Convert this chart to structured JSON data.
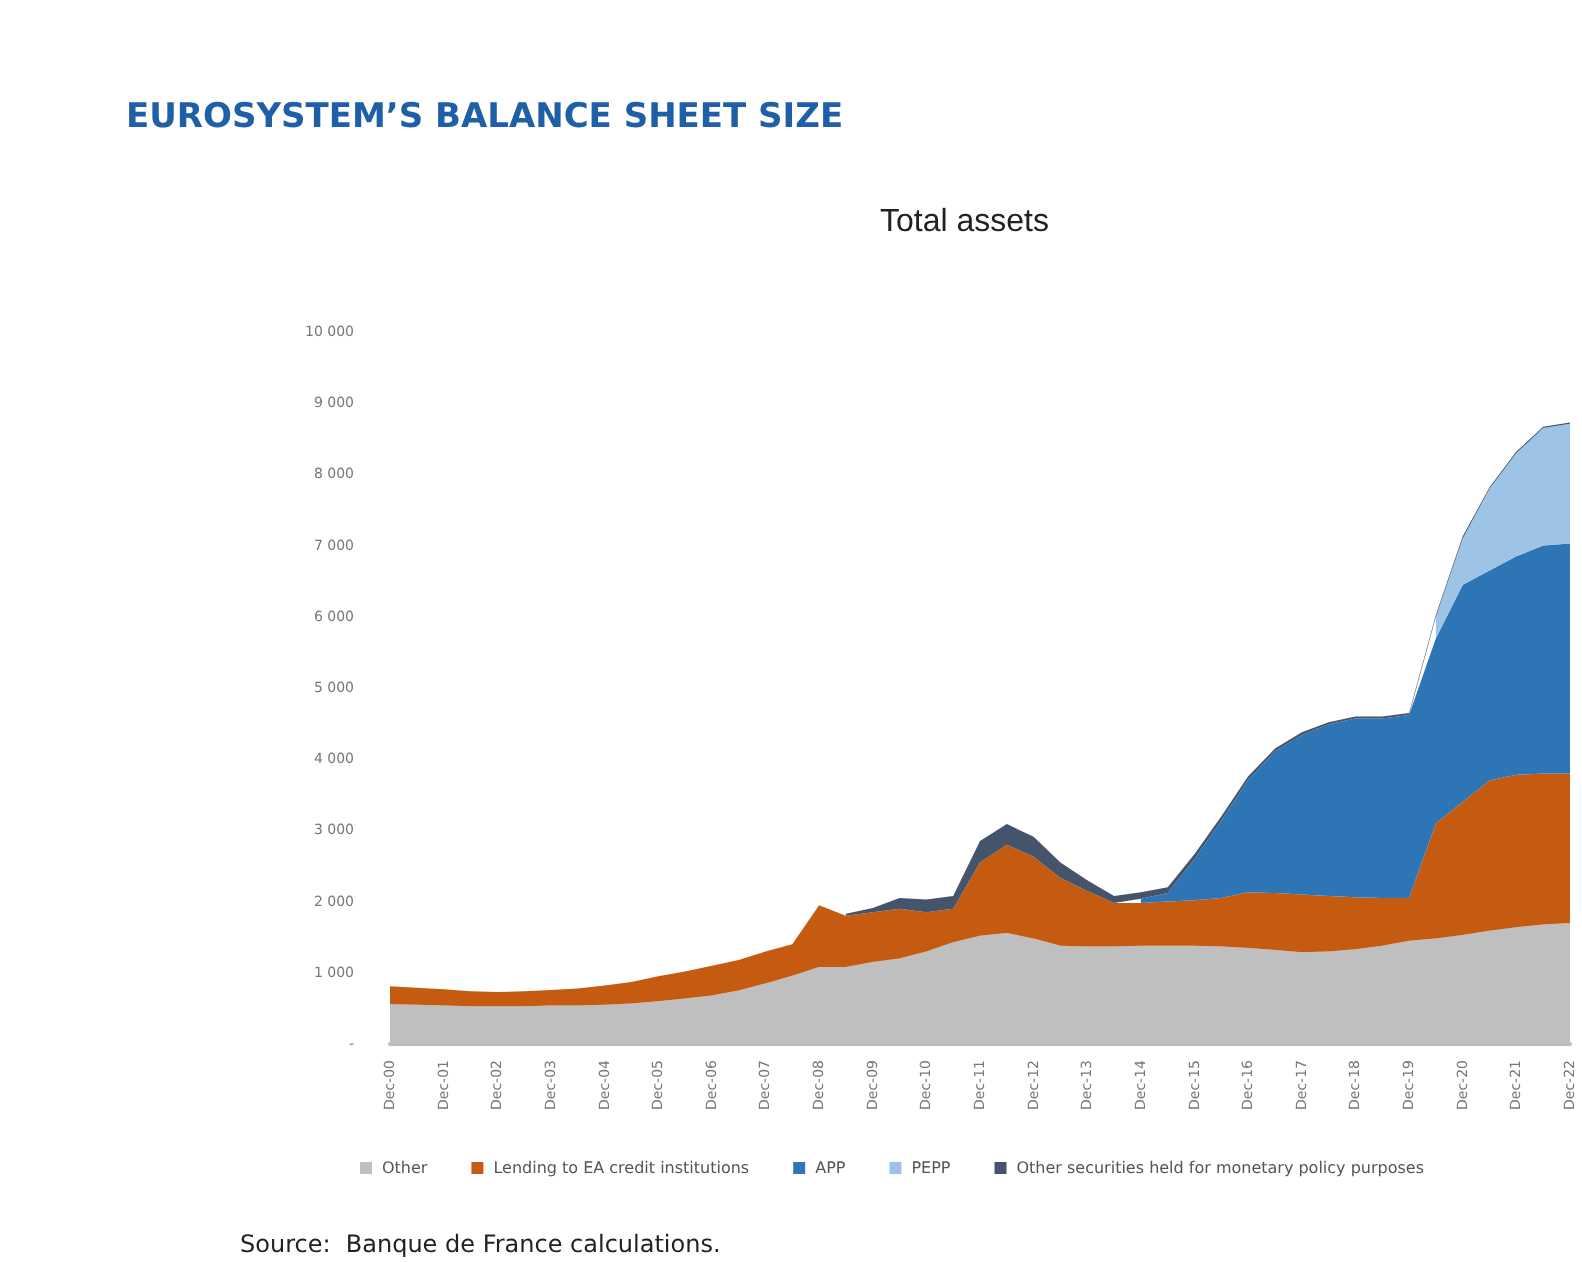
{
  "chart_data": {
    "type": "area",
    "title": "EUROSYSTEM’S BALANCE SHEET SIZE",
    "subtitle": "Total assets",
    "annotations": [
      "Source:  Banque de France calculations."
    ],
    "categories": [
      "Dec-00",
      null,
      "Dec-01",
      null,
      "Dec-02",
      null,
      "Dec-03",
      null,
      "Dec-04",
      null,
      "Dec-05",
      null,
      "Dec-06",
      null,
      "Dec-07",
      null,
      "Dec-08",
      null,
      "Dec-09",
      null,
      "Dec-10",
      null,
      "Dec-11",
      null,
      "Dec-12",
      null,
      "Dec-13",
      null,
      "Dec-14",
      null,
      "Dec-15",
      null,
      "Dec-16",
      null,
      "Dec-17",
      null,
      "Dec-18",
      null,
      "Dec-19",
      null,
      "Dec-20",
      null,
      "Dec-21",
      null,
      "Dec-22"
    ],
    "stacked": true,
    "series": [
      {
        "name": "Other",
        "color": "#bfbfbf",
        "values": [
          560,
          550,
          540,
          530,
          530,
          530,
          540,
          540,
          550,
          570,
          600,
          640,
          680,
          750,
          850,
          960,
          1080,
          1080,
          1150,
          1200,
          1300,
          1430,
          1520,
          1560,
          1480,
          1380,
          1370,
          1370,
          1380,
          1380,
          1380,
          1370,
          1350,
          1320,
          1290,
          1300,
          1330,
          1380,
          1450,
          1480,
          1530,
          1590,
          1640,
          1680,
          1700
        ]
      },
      {
        "name": "Lending to EA credit institutions",
        "color": "#c55a11",
        "values": [
          250,
          240,
          230,
          210,
          200,
          210,
          220,
          240,
          270,
          300,
          350,
          380,
          420,
          430,
          450,
          440,
          870,
          720,
          700,
          700,
          550,
          470,
          1030,
          1240,
          1150,
          950,
          780,
          610,
          600,
          620,
          640,
          680,
          780,
          800,
          810,
          780,
          730,
          670,
          600,
          1620,
          1870,
          2110,
          2140,
          2120,
          2100
        ]
      },
      {
        "name": "APP",
        "color": "#2e75b6",
        "values": [
          null,
          null,
          null,
          null,
          null,
          null,
          null,
          null,
          null,
          null,
          null,
          null,
          null,
          null,
          null,
          null,
          null,
          null,
          null,
          null,
          null,
          null,
          null,
          null,
          null,
          null,
          null,
          null,
          60,
          120,
          580,
          1090,
          1580,
          1990,
          2240,
          2410,
          2510,
          2520,
          2570,
          2600,
          3050,
          2950,
          3070,
          3200,
          3230
        ]
      },
      {
        "name": "PEPP",
        "color": "#9dc3e6",
        "values": [
          null,
          null,
          null,
          null,
          null,
          null,
          null,
          null,
          null,
          null,
          null,
          null,
          null,
          null,
          null,
          null,
          null,
          null,
          null,
          null,
          null,
          null,
          null,
          null,
          null,
          null,
          null,
          null,
          null,
          null,
          null,
          null,
          null,
          null,
          null,
          null,
          null,
          null,
          null,
          300,
          650,
          1150,
          1450,
          1650,
          1680
        ]
      },
      {
        "name": "Other securities held for monetary policy purposes",
        "color": "#44546a",
        "values": [
          null,
          null,
          null,
          null,
          null,
          null,
          null,
          null,
          null,
          null,
          null,
          null,
          null,
          null,
          null,
          null,
          null,
          30,
          60,
          150,
          180,
          180,
          300,
          290,
          280,
          220,
          150,
          100,
          90,
          80,
          70,
          60,
          50,
          40,
          40,
          30,
          30,
          30,
          30,
          30,
          30,
          20,
          20,
          20,
          20
        ]
      }
    ],
    "ylim": [
      0,
      10000
    ],
    "yticks": [
      {
        "value": 0,
        "label": "-"
      },
      {
        "value": 1000,
        "label": "1 000"
      },
      {
        "value": 2000,
        "label": "2 000"
      },
      {
        "value": 3000,
        "label": "3 000"
      },
      {
        "value": 4000,
        "label": "4 000"
      },
      {
        "value": 5000,
        "label": "5 000"
      },
      {
        "value": 6000,
        "label": "6 000"
      },
      {
        "value": 7000,
        "label": "7 000"
      },
      {
        "value": 8000,
        "label": "8 000"
      },
      {
        "value": 9000,
        "label": "9 000"
      },
      {
        "value": 10000,
        "label": "10 000"
      }
    ],
    "grid": false,
    "legend": "bottom"
  }
}
